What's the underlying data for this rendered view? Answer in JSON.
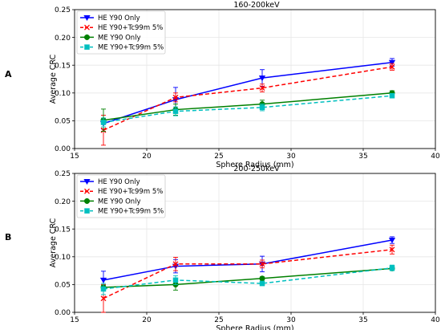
{
  "chart_data": [
    {
      "type": "line",
      "panel_label": "A",
      "title": "160-200keV",
      "xlabel": "Sphere Radius (mm)",
      "ylabel": "Average CRC",
      "xlim": [
        15,
        40
      ],
      "ylim": [
        0.0,
        0.25
      ],
      "xticks": [
        "15",
        "20",
        "25",
        "30",
        "35",
        "40"
      ],
      "yticks": [
        "0.00",
        "0.05",
        "0.10",
        "0.15",
        "0.20",
        "0.25"
      ],
      "grid": true,
      "legend_position": "upper-left",
      "x": [
        17,
        22,
        28,
        37
      ],
      "series": [
        {
          "name": "HE Y90 Only",
          "color": "#0000ff",
          "marker": "triangle-down",
          "linestyle": "solid",
          "values": [
            0.045,
            0.088,
            0.127,
            0.155
          ],
          "errors": [
            0.01,
            0.022,
            0.015,
            0.007
          ]
        },
        {
          "name": "HE Y90+Tc99m 5%",
          "color": "#ff0000",
          "marker": "x",
          "linestyle": "dashed",
          "values": [
            0.033,
            0.092,
            0.109,
            0.147
          ],
          "errors": [
            0.027,
            0.008,
            0.007,
            0.006
          ]
        },
        {
          "name": "ME Y90 Only",
          "color": "#008000",
          "marker": "circle",
          "linestyle": "solid",
          "values": [
            0.051,
            0.07,
            0.08,
            0.1
          ],
          "errors": [
            0.02,
            0.01,
            0.007,
            0.004
          ]
        },
        {
          "name": "ME Y90+Tc99m 5%",
          "color": "#00bfbf",
          "marker": "square",
          "linestyle": "dashed",
          "values": [
            0.047,
            0.067,
            0.074,
            0.095
          ],
          "errors": [
            0.008,
            0.008,
            0.006,
            0.004
          ]
        }
      ]
    },
    {
      "type": "line",
      "panel_label": "B",
      "title": "200-250keV",
      "xlabel": "Sphere Radius (mm)",
      "ylabel": "Average CRC",
      "xlim": [
        15,
        40
      ],
      "ylim": [
        0.0,
        0.25
      ],
      "xticks": [
        "15",
        "20",
        "25",
        "30",
        "35",
        "40"
      ],
      "yticks": [
        "0.00",
        "0.05",
        "0.10",
        "0.15",
        "0.20",
        "0.25"
      ],
      "grid": true,
      "legend_position": "upper-left",
      "x": [
        17,
        22,
        28,
        37
      ],
      "series": [
        {
          "name": "HE Y90 Only",
          "color": "#0000ff",
          "marker": "triangle-down",
          "linestyle": "solid",
          "values": [
            0.058,
            0.083,
            0.087,
            0.13
          ],
          "errors": [
            0.016,
            0.012,
            0.014,
            0.006
          ]
        },
        {
          "name": "HE Y90+Tc99m 5%",
          "color": "#ff0000",
          "marker": "x",
          "linestyle": "dashed",
          "values": [
            0.025,
            0.087,
            0.087,
            0.113
          ],
          "errors": [
            0.025,
            0.012,
            0.007,
            0.008
          ]
        },
        {
          "name": "ME Y90 Only",
          "color": "#008000",
          "marker": "circle",
          "linestyle": "solid",
          "values": [
            0.045,
            0.05,
            0.061,
            0.079
          ],
          "errors": [
            0.004,
            0.01,
            0.003,
            0.003
          ]
        },
        {
          "name": "ME Y90+Tc99m 5%",
          "color": "#00bfbf",
          "marker": "square",
          "linestyle": "dashed",
          "values": [
            0.042,
            0.058,
            0.052,
            0.08
          ],
          "errors": [
            0.01,
            0.008,
            0.004,
            0.005
          ]
        }
      ]
    }
  ]
}
